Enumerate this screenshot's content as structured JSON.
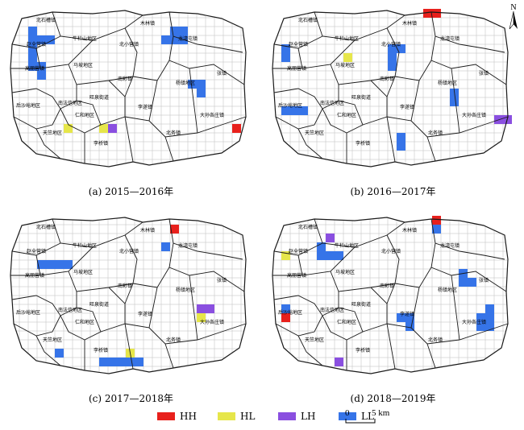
{
  "colors": {
    "HH": "#e8201c",
    "HL": "#e6e64a",
    "LH": "#8a4fe0",
    "LL": "#3674e8",
    "outline": "#1a1a1a",
    "grid": "#bdbdbd"
  },
  "north_label": "N",
  "scale": {
    "start": "0",
    "end": "5 km"
  },
  "legend": [
    {
      "key": "HH",
      "label": "HH"
    },
    {
      "key": "HL",
      "label": "HL"
    },
    {
      "key": "LH",
      "label": "LH"
    },
    {
      "key": "LL",
      "label": "LL"
    }
  ],
  "panels": [
    {
      "caption": "(a) 2015—2016年",
      "labels": [
        "北石槽镇",
        "牛栏山地区",
        "木林镇",
        "赵全营镇",
        "北小营镇",
        "龙湾屯镇",
        "高丽营镇",
        "马坡地区",
        "南彩镇",
        "杨镇地区",
        "张镇",
        "后沙峪地区",
        "南法信地区",
        "仁和地区",
        "旺泉街道",
        "李遂镇",
        "大孙各庄镇",
        "天竺地区",
        "李桥镇",
        "北务镇"
      ],
      "cells": [
        {
          "c": 2,
          "r": 2,
          "t": "LL"
        },
        {
          "c": 2,
          "r": 3,
          "t": "LL"
        },
        {
          "c": 3,
          "r": 3,
          "t": "LL"
        },
        {
          "c": 4,
          "r": 3,
          "t": "LL"
        },
        {
          "c": 2,
          "r": 4,
          "t": "LL"
        },
        {
          "c": 2,
          "r": 5,
          "t": "LL"
        },
        {
          "c": 2,
          "r": 6,
          "t": "LL"
        },
        {
          "c": 3,
          "r": 6,
          "t": "LL"
        },
        {
          "c": 3,
          "r": 7,
          "t": "LL"
        },
        {
          "c": 18,
          "r": 2,
          "t": "LL"
        },
        {
          "c": 19,
          "r": 2,
          "t": "LL"
        },
        {
          "c": 18,
          "r": 3,
          "t": "LL"
        },
        {
          "c": 19,
          "r": 3,
          "t": "LL"
        },
        {
          "c": 17,
          "r": 3,
          "t": "LL"
        },
        {
          "c": 20,
          "r": 8,
          "t": "LL"
        },
        {
          "c": 21,
          "r": 8,
          "t": "LL"
        },
        {
          "c": 21,
          "r": 9,
          "t": "LL"
        },
        {
          "c": 25,
          "r": 13,
          "t": "HH"
        },
        {
          "c": 6,
          "r": 13,
          "t": "HL"
        },
        {
          "c": 10,
          "r": 13,
          "t": "HL"
        },
        {
          "c": 11,
          "r": 13,
          "t": "LH"
        }
      ]
    },
    {
      "caption": "(b) 2016—2017年",
      "labels": [
        "北石槽镇",
        "牛栏山地区",
        "木林镇",
        "赵全营镇",
        "北小营镇",
        "龙湾屯镇",
        "高丽营镇",
        "马坡地区",
        "南彩镇",
        "杨镇地区",
        "张镇",
        "后沙峪地区",
        "南法信地区",
        "仁和地区",
        "旺泉街道",
        "李遂镇",
        "大孙各庄镇",
        "天竺地区",
        "李桥镇",
        "北务镇"
      ],
      "cells": [
        {
          "c": 17,
          "r": 0,
          "t": "HH"
        },
        {
          "c": 18,
          "r": 0,
          "t": "HH"
        },
        {
          "c": 1,
          "r": 4,
          "t": "LL"
        },
        {
          "c": 1,
          "r": 5,
          "t": "LL"
        },
        {
          "c": 8,
          "r": 5,
          "t": "HL"
        },
        {
          "c": 13,
          "r": 4,
          "t": "LL"
        },
        {
          "c": 14,
          "r": 4,
          "t": "LL"
        },
        {
          "c": 13,
          "r": 5,
          "t": "LL"
        },
        {
          "c": 13,
          "r": 6,
          "t": "LL"
        },
        {
          "c": 20,
          "r": 9,
          "t": "LL"
        },
        {
          "c": 20,
          "r": 10,
          "t": "LL"
        },
        {
          "c": 1,
          "r": 11,
          "t": "LL"
        },
        {
          "c": 2,
          "r": 11,
          "t": "LL"
        },
        {
          "c": 3,
          "r": 11,
          "t": "LL"
        },
        {
          "c": 25,
          "r": 12,
          "t": "LH"
        },
        {
          "c": 26,
          "r": 12,
          "t": "LH"
        },
        {
          "c": 14,
          "r": 14,
          "t": "LL"
        },
        {
          "c": 14,
          "r": 15,
          "t": "LL"
        }
      ]
    },
    {
      "caption": "(c) 2017—2018年",
      "labels": [
        "北石槽镇",
        "牛栏山地区",
        "木林镇",
        "赵全营镇",
        "北小营镇",
        "龙湾屯镇",
        "高丽营镇",
        "马坡地区",
        "南彩镇",
        "杨镇地区",
        "张镇",
        "后沙峪地区",
        "南法信地区",
        "仁和地区",
        "旺泉街道",
        "李遂镇",
        "大孙各庄镇",
        "天竺地区",
        "李桥镇",
        "北务镇"
      ],
      "cells": [
        {
          "c": 18,
          "r": 1,
          "t": "HH"
        },
        {
          "c": 17,
          "r": 3,
          "t": "LL"
        },
        {
          "c": 3,
          "r": 5,
          "t": "LL"
        },
        {
          "c": 4,
          "r": 5,
          "t": "LL"
        },
        {
          "c": 5,
          "r": 5,
          "t": "LL"
        },
        {
          "c": 6,
          "r": 5,
          "t": "LL"
        },
        {
          "c": 21,
          "r": 10,
          "t": "LH"
        },
        {
          "c": 22,
          "r": 10,
          "t": "LH"
        },
        {
          "c": 21,
          "r": 11,
          "t": "HL"
        },
        {
          "c": 5,
          "r": 15,
          "t": "LL"
        },
        {
          "c": 13,
          "r": 15,
          "t": "HL"
        },
        {
          "c": 11,
          "r": 16,
          "t": "LL"
        },
        {
          "c": 12,
          "r": 16,
          "t": "LL"
        },
        {
          "c": 13,
          "r": 16,
          "t": "LL"
        },
        {
          "c": 14,
          "r": 16,
          "t": "LL"
        },
        {
          "c": 10,
          "r": 16,
          "t": "LL"
        }
      ]
    },
    {
      "caption": "(d) 2018—2019年",
      "labels": [
        "北石槽镇",
        "牛栏山地区",
        "木林镇",
        "赵全营镇",
        "北小营镇",
        "龙湾屯镇",
        "高丽营镇",
        "马坡地区",
        "南彩镇",
        "杨镇地区",
        "张镇",
        "后沙峪地区",
        "南法信地区",
        "仁和地区",
        "旺泉街道",
        "李遂镇",
        "大孙各庄镇",
        "天竺地区",
        "李桥镇",
        "北务镇"
      ],
      "cells": [
        {
          "c": 18,
          "r": 0,
          "t": "HH"
        },
        {
          "c": 18,
          "r": 1,
          "t": "LL"
        },
        {
          "c": 6,
          "r": 2,
          "t": "LH"
        },
        {
          "c": 1,
          "r": 4,
          "t": "HL"
        },
        {
          "c": 5,
          "r": 3,
          "t": "LL"
        },
        {
          "c": 5,
          "r": 4,
          "t": "LL"
        },
        {
          "c": 6,
          "r": 4,
          "t": "LL"
        },
        {
          "c": 7,
          "r": 4,
          "t": "LL"
        },
        {
          "c": 21,
          "r": 6,
          "t": "LL"
        },
        {
          "c": 21,
          "r": 7,
          "t": "LL"
        },
        {
          "c": 22,
          "r": 7,
          "t": "LL"
        },
        {
          "c": 1,
          "r": 10,
          "t": "LL"
        },
        {
          "c": 1,
          "r": 11,
          "t": "HH"
        },
        {
          "c": 14,
          "r": 11,
          "t": "LL"
        },
        {
          "c": 15,
          "r": 11,
          "t": "LL"
        },
        {
          "c": 15,
          "r": 12,
          "t": "LL"
        },
        {
          "c": 23,
          "r": 11,
          "t": "LL"
        },
        {
          "c": 24,
          "r": 11,
          "t": "LL"
        },
        {
          "c": 23,
          "r": 12,
          "t": "LL"
        },
        {
          "c": 24,
          "r": 12,
          "t": "LL"
        },
        {
          "c": 24,
          "r": 10,
          "t": "LL"
        },
        {
          "c": 7,
          "r": 16,
          "t": "LH"
        }
      ]
    }
  ]
}
